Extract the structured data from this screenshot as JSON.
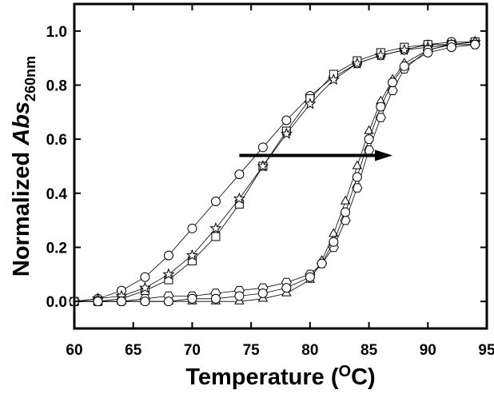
{
  "chart_data": {
    "type": "scatter",
    "title": "",
    "xlabel": "Temperature (",
    "xlabel_sup": "O",
    "xlabel_tail": "C)",
    "ylabel": "Normalized ",
    "ylabel_italic": "Abs",
    "ylabel_sub": "260nm",
    "xlim": [
      60,
      95
    ],
    "ylim": [
      -0.1,
      1.1
    ],
    "x_ticks": [
      60,
      65,
      70,
      75,
      80,
      85,
      90,
      95
    ],
    "x_tick_labels": [
      "60",
      "65",
      "70",
      "75",
      "80",
      "85",
      "90",
      "95"
    ],
    "y_ticks": [
      0.0,
      0.2,
      0.4,
      0.6,
      0.8,
      1.0
    ],
    "y_tick_labels": [
      "0.0",
      "0.2",
      "0.4",
      "0.6",
      "0.8",
      "1.0"
    ],
    "grid": false,
    "legend": "none",
    "arrow": {
      "from": [
        74,
        0.54
      ],
      "to": [
        87,
        0.54
      ]
    },
    "series": [
      {
        "marker": "circle",
        "x": [
          60,
          62,
          64,
          66,
          68,
          70,
          72,
          74,
          76,
          78,
          80,
          82,
          84,
          86,
          88,
          90,
          92,
          94
        ],
        "y": [
          0.0,
          0.01,
          0.04,
          0.09,
          0.17,
          0.27,
          0.37,
          0.47,
          0.57,
          0.67,
          0.76,
          0.83,
          0.88,
          0.91,
          0.93,
          0.95,
          0.96,
          0.96
        ]
      },
      {
        "marker": "square",
        "x": [
          60,
          62,
          64,
          66,
          68,
          70,
          72,
          74,
          76,
          78,
          80,
          82,
          84,
          86,
          88,
          90,
          92,
          94
        ],
        "y": [
          0.0,
          0.0,
          0.01,
          0.04,
          0.08,
          0.15,
          0.24,
          0.36,
          0.5,
          0.63,
          0.75,
          0.84,
          0.89,
          0.92,
          0.94,
          0.95,
          0.95,
          0.96
        ]
      },
      {
        "marker": "star",
        "x": [
          60,
          62,
          64,
          66,
          68,
          70,
          72,
          74,
          76,
          78,
          80,
          82,
          84,
          86,
          88,
          90,
          92,
          94
        ],
        "y": [
          0.0,
          0.01,
          0.02,
          0.05,
          0.1,
          0.17,
          0.27,
          0.38,
          0.5,
          0.62,
          0.73,
          0.82,
          0.88,
          0.91,
          0.93,
          0.94,
          0.95,
          0.96
        ]
      },
      {
        "marker": "triangle",
        "x": [
          60,
          62,
          64,
          66,
          68,
          70,
          72,
          74,
          76,
          78,
          80,
          81,
          82,
          83,
          84,
          85,
          86,
          87,
          88,
          90,
          92,
          94
        ],
        "y": [
          0.0,
          0.0,
          0.0,
          0.0,
          0.0,
          0.0,
          0.0,
          0.0,
          0.01,
          0.03,
          0.08,
          0.15,
          0.25,
          0.37,
          0.5,
          0.63,
          0.74,
          0.82,
          0.88,
          0.93,
          0.95,
          0.96
        ]
      },
      {
        "marker": "hexagon",
        "x": [
          60,
          62,
          64,
          66,
          68,
          70,
          72,
          74,
          76,
          78,
          80,
          81,
          82,
          83,
          84,
          85,
          86,
          87,
          88,
          90,
          92,
          94
        ],
        "y": [
          0.0,
          0.0,
          0.0,
          0.01,
          0.02,
          0.02,
          0.03,
          0.04,
          0.05,
          0.07,
          0.1,
          0.14,
          0.2,
          0.3,
          0.42,
          0.56,
          0.68,
          0.78,
          0.86,
          0.93,
          0.95,
          0.95
        ]
      },
      {
        "marker": "circle",
        "x": [
          60,
          62,
          64,
          66,
          68,
          70,
          72,
          74,
          76,
          78,
          80,
          81,
          82,
          83,
          84,
          85,
          86,
          87,
          88,
          90,
          92,
          94
        ],
        "y": [
          0.0,
          0.0,
          0.0,
          0.0,
          0.0,
          0.01,
          0.01,
          0.02,
          0.03,
          0.05,
          0.09,
          0.14,
          0.22,
          0.33,
          0.46,
          0.6,
          0.72,
          0.81,
          0.87,
          0.92,
          0.94,
          0.95
        ]
      }
    ]
  }
}
